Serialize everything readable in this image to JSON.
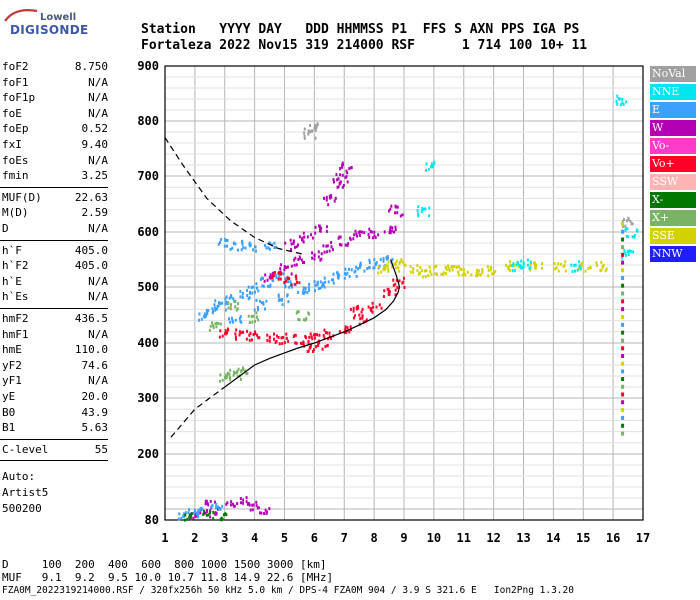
{
  "logo": {
    "brand": "Lowell",
    "product": "DIGISONDE"
  },
  "header": {
    "line1": "Station   YYYY DAY   DDD HHMMSS P1  FFS S AXN PPS IGA PS",
    "line2": "Fortaleza 2022 Nov15 319 214000 RSF      1 714 100 10+ 11"
  },
  "params": {
    "group1": [
      {
        "label": "foF2",
        "value": "8.750"
      },
      {
        "label": "foF1",
        "value": "N/A"
      },
      {
        "label": "foF1p",
        "value": "N/A"
      },
      {
        "label": "foE",
        "value": "N/A"
      },
      {
        "label": "foEp",
        "value": "0.52"
      },
      {
        "label": "fxI",
        "value": "9.40"
      },
      {
        "label": "foEs",
        "value": "N/A"
      },
      {
        "label": "fmin",
        "value": "3.25"
      }
    ],
    "group2": [
      {
        "label": "MUF(D)",
        "value": "22.63"
      },
      {
        "label": "M(D)",
        "value": "2.59"
      },
      {
        "label": "D",
        "value": "N/A"
      }
    ],
    "group3": [
      {
        "label": "h`F",
        "value": "405.0"
      },
      {
        "label": "h`F2",
        "value": "405.0"
      },
      {
        "label": "h`E",
        "value": "N/A"
      },
      {
        "label": "h`Es",
        "value": "N/A"
      }
    ],
    "group4": [
      {
        "label": "hmF2",
        "value": "436.5"
      },
      {
        "label": "hmF1",
        "value": "N/A"
      },
      {
        "label": "hmE",
        "value": "110.0"
      },
      {
        "label": "yF2",
        "value": "74.6"
      },
      {
        "label": "yF1",
        "value": "N/A"
      },
      {
        "label": "yE",
        "value": "20.0"
      },
      {
        "label": "B0",
        "value": "43.9"
      },
      {
        "label": "B1",
        "value": "5.63"
      }
    ],
    "clevel": {
      "label": "C-level",
      "value": "55"
    },
    "auto": [
      "Auto:",
      "Artist5",
      "500200"
    ]
  },
  "footer": {
    "d_row": "D     100  200  400  600  800 1000 1500 3000 [km]",
    "muf_row": "MUF   9.1  9.2  9.5 10.0 10.7 11.8 14.9 22.6 [MHz]",
    "file_row": "FZA0M_2022319214000.RSF / 320fx256h 50 kHz 5.0 km / DPS-4 FZA0M 904 / 3.9 S 321.6 E   Ion2Png 1.3.20"
  },
  "legend": [
    {
      "label": "NoVal",
      "color": "#a0a0a0"
    },
    {
      "label": "NNE",
      "color": "#00e6f0"
    },
    {
      "label": "E",
      "color": "#3ca0ff"
    },
    {
      "label": "W",
      "color": "#b400b4"
    },
    {
      "label": "Vo-",
      "color": "#ff3cc8"
    },
    {
      "label": "Vo+",
      "color": "#ff0028"
    },
    {
      "label": "SSW",
      "color": "#ffb4b4"
    },
    {
      "label": "X-",
      "color": "#007800"
    },
    {
      "label": "X+",
      "color": "#78b464"
    },
    {
      "label": "SSE",
      "color": "#d2d200"
    },
    {
      "label": "NNW",
      "color": "#1e1eff"
    }
  ],
  "chart_data": {
    "type": "scatter",
    "xlabel": "",
    "ylabel": "",
    "xlim": [
      1,
      17
    ],
    "ylim": [
      80,
      900
    ],
    "x_ticks": [
      "1",
      "2",
      "3",
      "4",
      "5",
      "6",
      "7",
      "8",
      "9",
      "10",
      "11",
      "12",
      "13",
      "14",
      "15",
      "16",
      "17"
    ],
    "y_ticks": [
      "80",
      "200",
      "300",
      "400",
      "500",
      "600",
      "700",
      "800",
      "900"
    ],
    "y_tick_values": [
      80,
      200,
      300,
      400,
      500,
      600,
      700,
      800,
      900
    ],
    "grid": true,
    "traces": [
      {
        "name": "E",
        "color": "#3ca0ff",
        "points": [
          [
            2.3,
            450
          ],
          [
            2.8,
            470
          ],
          [
            3.2,
            480
          ],
          [
            3.6,
            490
          ],
          [
            4.0,
            500
          ],
          [
            4.4,
            510
          ],
          [
            4.8,
            520
          ],
          [
            5.2,
            510
          ],
          [
            5.6,
            500
          ],
          [
            6.0,
            505
          ],
          [
            6.4,
            510
          ],
          [
            6.8,
            520
          ],
          [
            7.2,
            530
          ],
          [
            7.6,
            540
          ],
          [
            8.0,
            545
          ],
          [
            8.4,
            550
          ],
          [
            3.0,
            580
          ],
          [
            3.5,
            578
          ],
          [
            4.0,
            576
          ],
          [
            4.5,
            578
          ],
          [
            2.6,
            460
          ],
          [
            3.3,
            445
          ],
          [
            4.2,
            470
          ],
          [
            5.0,
            480
          ]
        ]
      },
      {
        "name": "W",
        "color": "#b400b4",
        "points": [
          [
            4.5,
            520
          ],
          [
            5.0,
            535
          ],
          [
            5.5,
            550
          ],
          [
            6.0,
            560
          ],
          [
            6.5,
            575
          ],
          [
            7.0,
            585
          ],
          [
            7.5,
            595
          ],
          [
            8.0,
            600
          ],
          [
            8.5,
            610
          ],
          [
            5.2,
            580
          ],
          [
            5.7,
            592
          ],
          [
            6.2,
            605
          ],
          [
            6.9,
            700
          ],
          [
            7.0,
            720
          ],
          [
            6.8,
            690
          ],
          [
            6.5,
            660
          ],
          [
            8.7,
            640
          ]
        ]
      },
      {
        "name": "Vo+",
        "color": "#ff0028",
        "points": [
          [
            3.0,
            420
          ],
          [
            3.5,
            418
          ],
          [
            4.0,
            415
          ],
          [
            4.5,
            412
          ],
          [
            5.0,
            410
          ],
          [
            5.5,
            408
          ],
          [
            6.0,
            410
          ],
          [
            6.5,
            418
          ],
          [
            7.0,
            430
          ],
          [
            7.5,
            445
          ],
          [
            8.0,
            465
          ],
          [
            8.5,
            490
          ],
          [
            8.8,
            510
          ],
          [
            6.2,
            400
          ],
          [
            5.8,
            395
          ],
          [
            7.4,
            460
          ],
          [
            4.8,
            520
          ],
          [
            5.3,
            515
          ]
        ]
      },
      {
        "name": "SSE",
        "color": "#d2d200",
        "points": [
          [
            8.3,
            535
          ],
          [
            8.6,
            540
          ],
          [
            8.9,
            545
          ],
          [
            9.3,
            535
          ],
          [
            9.8,
            530
          ],
          [
            10.2,
            532
          ],
          [
            10.6,
            532
          ],
          [
            11.0,
            532
          ],
          [
            11.4,
            532
          ],
          [
            11.8,
            532
          ],
          [
            12.6,
            540
          ],
          [
            13.4,
            538
          ],
          [
            14.2,
            540
          ],
          [
            15.0,
            540
          ],
          [
            15.6,
            540
          ]
        ]
      },
      {
        "name": "X+",
        "color": "#78b464",
        "points": [
          [
            3.0,
            340
          ],
          [
            3.3,
            345
          ],
          [
            3.6,
            350
          ],
          [
            3.2,
            470
          ],
          [
            4.0,
            448
          ],
          [
            5.6,
            450
          ],
          [
            2.7,
            430
          ]
        ]
      },
      {
        "name": "NNE",
        "color": "#00e6f0",
        "points": [
          [
            9.9,
            720
          ],
          [
            9.6,
            640
          ],
          [
            12.8,
            540
          ],
          [
            13.0,
            545
          ],
          [
            14.8,
            540
          ],
          [
            16.6,
            600
          ],
          [
            16.5,
            560
          ],
          [
            16.3,
            840
          ]
        ]
      },
      {
        "name": "NoVal",
        "color": "#a0a0a0",
        "points": [
          [
            6.0,
            790
          ],
          [
            5.8,
            780
          ],
          [
            16.5,
            620
          ]
        ]
      }
    ],
    "ground_layer": [
      {
        "name": "W",
        "color": "#b400b4",
        "points": [
          [
            2.0,
            90
          ],
          [
            2.3,
            95
          ],
          [
            2.8,
            100
          ],
          [
            3.2,
            110
          ],
          [
            3.6,
            118
          ],
          [
            4.0,
            108
          ],
          [
            4.3,
            100
          ],
          [
            2.5,
            110
          ]
        ]
      },
      {
        "name": "E",
        "color": "#3ca0ff",
        "points": [
          [
            1.6,
            90
          ],
          [
            1.9,
            95
          ],
          [
            2.2,
            100
          ],
          [
            2.7,
            105
          ]
        ]
      },
      {
        "name": "X-",
        "color": "#007800",
        "points": [
          [
            1.8,
            88
          ],
          [
            2.4,
            92
          ],
          [
            3.0,
            90
          ]
        ]
      }
    ],
    "profile_solid": [
      [
        5.4,
        390
      ],
      [
        6.0,
        400
      ],
      [
        6.5,
        410
      ],
      [
        7.0,
        420
      ],
      [
        7.5,
        432
      ],
      [
        8.0,
        445
      ],
      [
        8.4,
        460
      ],
      [
        8.65,
        475
      ],
      [
        8.8,
        490
      ],
      [
        8.85,
        500
      ],
      [
        8.75,
        520
      ],
      [
        8.55,
        550
      ]
    ],
    "profile_solid_low": [
      [
        3.0,
        320
      ],
      [
        3.5,
        340
      ],
      [
        4.0,
        360
      ],
      [
        4.5,
        372
      ],
      [
        5.0,
        382
      ],
      [
        5.4,
        390
      ]
    ],
    "profile_dashed": [
      [
        1.0,
        770
      ],
      [
        1.6,
        720
      ],
      [
        2.4,
        660
      ],
      [
        3.2,
        620
      ],
      [
        4.0,
        590
      ],
      [
        4.8,
        570
      ],
      [
        5.6,
        560
      ]
    ],
    "profile_dashed_low": [
      [
        1.2,
        230
      ],
      [
        1.6,
        255
      ],
      [
        2.0,
        280
      ],
      [
        2.5,
        300
      ],
      [
        3.0,
        320
      ]
    ],
    "muf_column_x": 16.3
  }
}
